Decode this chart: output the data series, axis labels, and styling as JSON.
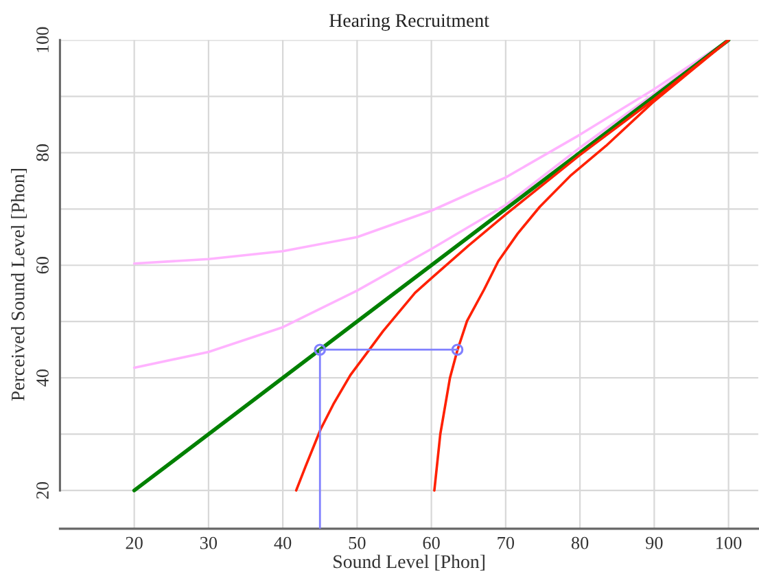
{
  "chart_data": {
    "type": "line",
    "title": "Hearing Recruitment",
    "xlabel": "Sound Level [Phon]",
    "ylabel": "Perceived Sound Level [Phon]",
    "xlim": [
      10,
      104
    ],
    "ylim": [
      13.2,
      100
    ],
    "xticks": [
      20,
      30,
      40,
      50,
      60,
      70,
      80,
      90,
      100
    ],
    "yticks": [
      20,
      {
        "value": 30,
        "label": null
      },
      40,
      {
        "value": 50,
        "label": null
      },
      60,
      {
        "value": 70,
        "label": null
      },
      80,
      {
        "value": 90,
        "label": null
      },
      100
    ],
    "grid": true,
    "legend": false,
    "series": [
      {
        "color": "#ffb3ff",
        "x": [
          20,
          30,
          40,
          50,
          60,
          70,
          80,
          90,
          100
        ],
        "values": [
          60.3,
          61.1,
          62.5,
          65.0,
          69.7,
          75.6,
          83.2,
          91.3,
          100
        ]
      },
      {
        "color": "#ffb3ff",
        "x": [
          20,
          30,
          40,
          50,
          60,
          70,
          80,
          90,
          100
        ],
        "values": [
          41.8,
          44.6,
          49.0,
          55.5,
          62.9,
          70.7,
          80.9,
          90.5,
          100
        ]
      },
      {
        "color": "#008000",
        "x": [
          20,
          100
        ],
        "values": [
          20,
          100
        ]
      },
      {
        "color": "#ff2000",
        "x": [
          41.8,
          43.1,
          45.1,
          46.8,
          49.1,
          51.7,
          53.5,
          57.8,
          60,
          65,
          70,
          80,
          90,
          100
        ],
        "values": [
          20,
          24.4,
          30.9,
          35.3,
          40.5,
          45.1,
          48.3,
          55.1,
          57.7,
          63.5,
          69.0,
          79.6,
          89.5,
          100
        ]
      },
      {
        "color": "#ff2000",
        "x": [
          60.4,
          61.2,
          62.5,
          63.5,
          64.8,
          67.1,
          69,
          71.6,
          74.6,
          78.8,
          83.5,
          89.7,
          100
        ],
        "values": [
          20,
          30.0,
          40,
          44.9,
          50.1,
          55.7,
          60.7,
          65.6,
          70.4,
          76.0,
          81.2,
          88.8,
          100
        ]
      },
      {
        "color": "#8080ff",
        "x": [
          45,
          45,
          63.5
        ],
        "values": [
          13.2,
          45,
          45
        ]
      },
      {
        "type": "scatter",
        "marker": "circle",
        "color": "#8080ff",
        "x": [
          45,
          63.5
        ],
        "values": [
          45,
          45
        ]
      }
    ]
  }
}
